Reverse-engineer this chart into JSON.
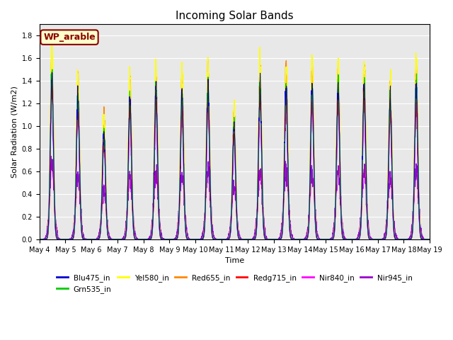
{
  "title": "Incoming Solar Bands",
  "xlabel": "Time",
  "ylabel": "Solar Radiation (W/m2)",
  "annotation": "WP_arable",
  "ylim": [
    0,
    1.9
  ],
  "num_days": 15,
  "start_day": 4,
  "series_order": [
    "Nir945_in",
    "Nir840_in",
    "Redg715_in",
    "Red655_in",
    "Yel580_in",
    "Grn535_in",
    "Blu475_in"
  ],
  "series": {
    "Blu475_in": {
      "color": "#0000CC",
      "lw": 0.8,
      "peak_scale": 0.86
    },
    "Grn535_in": {
      "color": "#00CC00",
      "lw": 0.8,
      "peak_scale": 0.88
    },
    "Yel580_in": {
      "color": "#FFFF00",
      "lw": 1.0,
      "peak_scale": 1.0
    },
    "Red655_in": {
      "color": "#FF8800",
      "lw": 1.0,
      "peak_scale": 0.97
    },
    "Redg715_in": {
      "color": "#FF0000",
      "lw": 1.0,
      "peak_scale": 0.79
    },
    "Nir840_in": {
      "color": "#FF00FF",
      "lw": 1.0,
      "peak_scale": 0.79
    },
    "Nir945_in": {
      "color": "#9900CC",
      "lw": 1.0,
      "peak_scale": 0.38
    }
  },
  "day_peaks_yel": [
    1.68,
    1.47,
    1.1,
    1.43,
    1.52,
    1.47,
    1.56,
    1.16,
    1.56,
    1.56,
    1.56,
    1.56,
    1.56,
    1.43,
    1.56
  ],
  "background_color": "#E8E8E8",
  "legend_order": [
    "Blu475_in",
    "Grn535_in",
    "Yel580_in",
    "Red655_in",
    "Redg715_in",
    "Nir840_in",
    "Nir945_in"
  ]
}
